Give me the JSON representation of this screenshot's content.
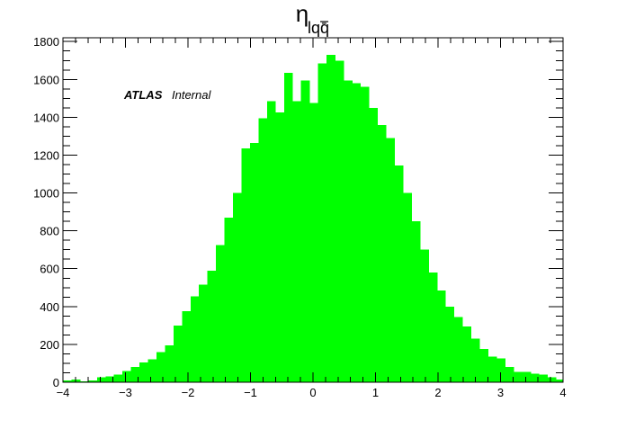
{
  "chart_data": {
    "type": "bar",
    "title": "η",
    "title_subscript": "lqq̄",
    "xlabel": "",
    "ylabel": "",
    "annotation": {
      "bold": "ATLAS",
      "italic": "Internal"
    },
    "xlim": [
      -4,
      4
    ],
    "ylim": [
      0,
      1820
    ],
    "bin_width": 0.136,
    "bin_start": -4,
    "x_ticks": [
      "−4",
      "−3",
      "−2",
      "−1",
      "0",
      "1",
      "2",
      "3",
      "4"
    ],
    "y_ticks": [
      "0",
      "200",
      "400",
      "600",
      "800",
      "1000",
      "1200",
      "1400",
      "1600",
      "1800"
    ],
    "bar_color": "#00ff00",
    "values": [
      10,
      15,
      5,
      10,
      25,
      30,
      40,
      60,
      80,
      105,
      120,
      160,
      195,
      300,
      375,
      455,
      515,
      590,
      725,
      870,
      1000,
      1235,
      1265,
      1395,
      1485,
      1425,
      1635,
      1485,
      1595,
      1475,
      1685,
      1730,
      1700,
      1595,
      1580,
      1560,
      1450,
      1360,
      1290,
      1145,
      1000,
      850,
      700,
      580,
      485,
      400,
      345,
      295,
      230,
      175,
      135,
      125,
      80,
      55,
      55,
      45,
      40,
      25,
      15,
      5
    ]
  }
}
